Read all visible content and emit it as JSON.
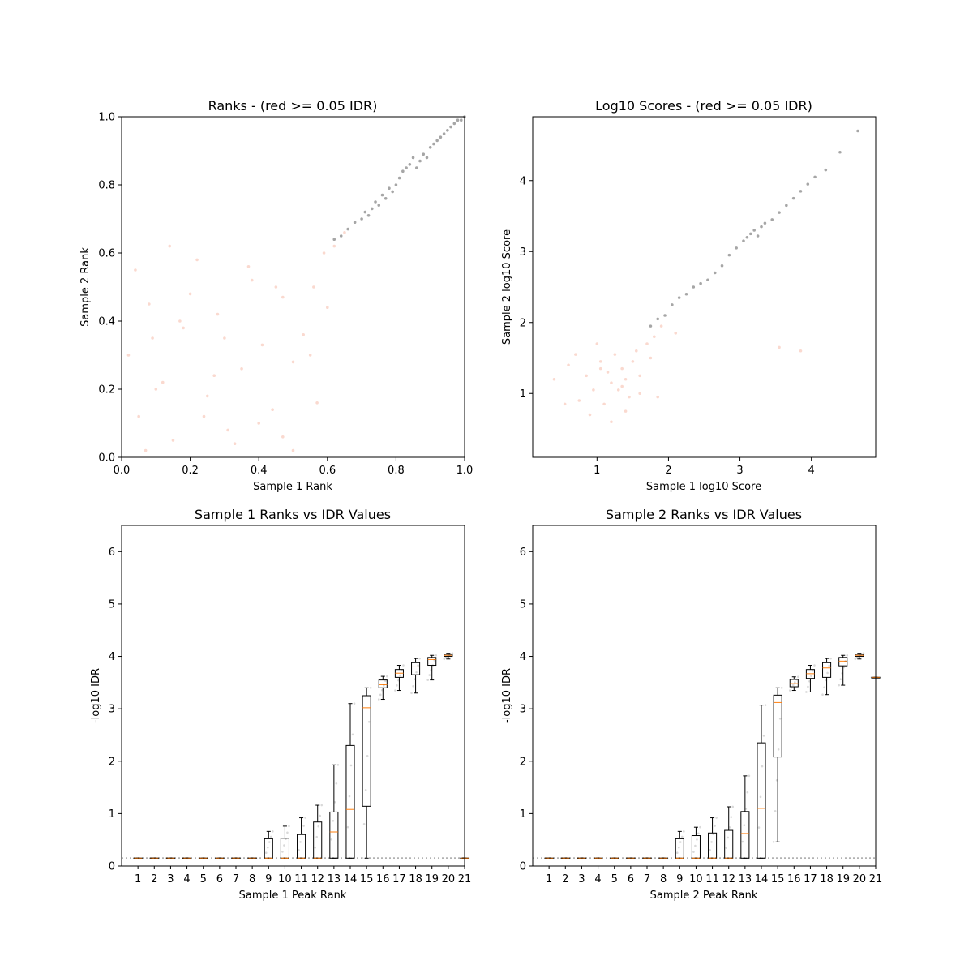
{
  "chart_data": [
    {
      "type": "scatter",
      "title": "Ranks - (red >= 0.05 IDR)",
      "xlabel": "Sample 1 Rank",
      "ylabel": "Sample 2 Rank",
      "xlim": [
        0,
        1
      ],
      "ylim": [
        0,
        1
      ],
      "xticks": [
        "0.0",
        "0.2",
        "0.4",
        "0.6",
        "0.8",
        "1.0"
      ],
      "yticks": [
        "0.0",
        "0.2",
        "0.4",
        "0.6",
        "0.8",
        "1.0"
      ],
      "colors": {
        "pass": "#000000",
        "fail": "#f08060"
      },
      "series": [
        {
          "color": "#000000",
          "description_points": "high-rank points along the diagonal",
          "x": [
            0.62,
            0.64,
            0.66,
            0.68,
            0.7,
            0.71,
            0.72,
            0.73,
            0.74,
            0.75,
            0.76,
            0.77,
            0.78,
            0.79,
            0.8,
            0.81,
            0.82,
            0.83,
            0.84,
            0.85,
            0.86,
            0.87,
            0.88,
            0.89,
            0.9,
            0.91,
            0.92,
            0.93,
            0.94,
            0.95,
            0.96,
            0.97,
            0.98,
            0.99,
            1.0
          ],
          "y": [
            0.64,
            0.65,
            0.67,
            0.69,
            0.7,
            0.72,
            0.71,
            0.73,
            0.75,
            0.74,
            0.77,
            0.76,
            0.79,
            0.78,
            0.8,
            0.82,
            0.84,
            0.85,
            0.86,
            0.88,
            0.85,
            0.87,
            0.89,
            0.88,
            0.91,
            0.92,
            0.93,
            0.94,
            0.95,
            0.96,
            0.97,
            0.98,
            0.99,
            0.99,
            1.0
          ]
        },
        {
          "color": "#f08060",
          "x": [
            0.02,
            0.05,
            0.08,
            0.12,
            0.15,
            0.18,
            0.22,
            0.25,
            0.28,
            0.31,
            0.35,
            0.38,
            0.41,
            0.44,
            0.47,
            0.5,
            0.53,
            0.56,
            0.59,
            0.62,
            0.65,
            0.04,
            0.1,
            0.2,
            0.3,
            0.4,
            0.5,
            0.6,
            0.07,
            0.17,
            0.27,
            0.37,
            0.47,
            0.57,
            0.14,
            0.33,
            0.45,
            0.55,
            0.24,
            0.09
          ],
          "y": [
            0.3,
            0.12,
            0.45,
            0.22,
            0.05,
            0.38,
            0.58,
            0.18,
            0.42,
            0.08,
            0.26,
            0.52,
            0.33,
            0.14,
            0.47,
            0.02,
            0.36,
            0.5,
            0.6,
            0.62,
            0.66,
            0.55,
            0.2,
            0.48,
            0.35,
            0.1,
            0.28,
            0.44,
            0.02,
            0.4,
            0.24,
            0.56,
            0.06,
            0.16,
            0.62,
            0.04,
            0.5,
            0.3,
            0.12,
            0.35
          ]
        }
      ]
    },
    {
      "type": "scatter",
      "title": "Log10 Scores - (red >= 0.05 IDR)",
      "xlabel": "Sample 1 log10 Score",
      "ylabel": "Sample 2 log10 Score",
      "xlim": [
        0.1,
        4.9
      ],
      "ylim": [
        0.1,
        4.9
      ],
      "xticks": [
        "1",
        "2",
        "3",
        "4"
      ],
      "yticks": [
        "1",
        "2",
        "3",
        "4"
      ],
      "series": [
        {
          "color": "#000000",
          "x": [
            1.75,
            1.85,
            1.95,
            2.05,
            2.15,
            2.25,
            2.35,
            2.45,
            2.55,
            2.65,
            2.75,
            2.85,
            2.95,
            3.05,
            3.1,
            3.15,
            3.2,
            3.25,
            3.3,
            3.35,
            3.45,
            3.55,
            3.65,
            3.75,
            3.85,
            3.95,
            4.05,
            4.2,
            4.4,
            4.65
          ],
          "y": [
            1.95,
            2.05,
            2.1,
            2.25,
            2.35,
            2.4,
            2.5,
            2.55,
            2.6,
            2.7,
            2.8,
            2.95,
            3.05,
            3.15,
            3.2,
            3.25,
            3.3,
            3.22,
            3.35,
            3.4,
            3.45,
            3.55,
            3.65,
            3.75,
            3.85,
            3.95,
            4.05,
            4.15,
            4.4,
            4.7
          ]
        },
        {
          "color": "#f08060",
          "x": [
            0.4,
            0.6,
            0.75,
            0.85,
            0.95,
            1.05,
            1.1,
            1.15,
            1.2,
            1.25,
            1.3,
            1.35,
            1.4,
            1.45,
            1.5,
            1.55,
            1.6,
            1.7,
            1.8,
            1.9,
            0.7,
            0.9,
            1.0,
            1.2,
            1.4,
            1.6,
            0.55,
            1.35,
            1.05,
            1.75,
            2.1,
            3.55,
            3.85,
            1.85
          ],
          "y": [
            1.2,
            1.4,
            0.9,
            1.25,
            1.05,
            1.45,
            0.85,
            1.3,
            1.15,
            1.55,
            1.05,
            1.35,
            1.2,
            0.95,
            1.45,
            1.6,
            1.25,
            1.7,
            1.8,
            1.95,
            1.55,
            0.7,
            1.7,
            0.6,
            0.75,
            1.0,
            0.85,
            1.1,
            1.35,
            1.5,
            1.85,
            1.65,
            1.6,
            0.95
          ]
        }
      ]
    },
    {
      "type": "box",
      "title": "Sample 1 Ranks vs IDR Values",
      "xlabel": "Sample 1 Peak Rank",
      "ylabel": "-log10 IDR",
      "ylim": [
        0,
        6.5
      ],
      "xlim": [
        0,
        21
      ],
      "yticks": [
        "0",
        "1",
        "2",
        "3",
        "4",
        "5",
        "6"
      ],
      "categories": [
        "1",
        "2",
        "3",
        "4",
        "5",
        "6",
        "7",
        "8",
        "9",
        "10",
        "11",
        "12",
        "13",
        "14",
        "15",
        "16",
        "17",
        "18",
        "19",
        "20",
        "21"
      ],
      "boxes": [
        {
          "q1": 0.15,
          "median": 0.15,
          "q3": 0.15,
          "whislo": 0.15,
          "whishi": 0.15
        },
        {
          "q1": 0.15,
          "median": 0.15,
          "q3": 0.15,
          "whislo": 0.15,
          "whishi": 0.15
        },
        {
          "q1": 0.15,
          "median": 0.15,
          "q3": 0.15,
          "whislo": 0.15,
          "whishi": 0.15
        },
        {
          "q1": 0.15,
          "median": 0.15,
          "q3": 0.15,
          "whislo": 0.15,
          "whishi": 0.15
        },
        {
          "q1": 0.15,
          "median": 0.15,
          "q3": 0.15,
          "whislo": 0.15,
          "whishi": 0.15
        },
        {
          "q1": 0.15,
          "median": 0.15,
          "q3": 0.15,
          "whislo": 0.15,
          "whishi": 0.15
        },
        {
          "q1": 0.15,
          "median": 0.15,
          "q3": 0.15,
          "whislo": 0.15,
          "whishi": 0.15
        },
        {
          "q1": 0.15,
          "median": 0.15,
          "q3": 0.15,
          "whislo": 0.15,
          "whishi": 0.15
        },
        {
          "q1": 0.15,
          "median": 0.15,
          "q3": 0.52,
          "whislo": 0.15,
          "whishi": 0.66
        },
        {
          "q1": 0.15,
          "median": 0.15,
          "q3": 0.53,
          "whislo": 0.15,
          "whishi": 0.76
        },
        {
          "q1": 0.15,
          "median": 0.15,
          "q3": 0.6,
          "whislo": 0.15,
          "whishi": 0.92
        },
        {
          "q1": 0.15,
          "median": 0.15,
          "q3": 0.84,
          "whislo": 0.15,
          "whishi": 1.16
        },
        {
          "q1": 0.15,
          "median": 0.65,
          "q3": 1.03,
          "whislo": 0.15,
          "whishi": 1.93
        },
        {
          "q1": 0.15,
          "median": 1.08,
          "q3": 2.3,
          "whislo": 0.15,
          "whishi": 3.1
        },
        {
          "q1": 1.14,
          "median": 3.02,
          "q3": 3.25,
          "whislo": 0.15,
          "whishi": 3.4
        },
        {
          "q1": 3.4,
          "median": 3.46,
          "q3": 3.55,
          "whislo": 3.18,
          "whishi": 3.62
        },
        {
          "q1": 3.6,
          "median": 3.68,
          "q3": 3.75,
          "whislo": 3.35,
          "whishi": 3.83
        },
        {
          "q1": 3.65,
          "median": 3.8,
          "q3": 3.88,
          "whislo": 3.3,
          "whishi": 3.96
        },
        {
          "q1": 3.83,
          "median": 3.94,
          "q3": 3.98,
          "whislo": 3.55,
          "whishi": 4.02
        },
        {
          "q1": 4.0,
          "median": 4.02,
          "q3": 4.04,
          "whislo": 3.95,
          "whishi": 4.06
        },
        {
          "q1": 0.15,
          "median": 0.15,
          "q3": 0.15,
          "whislo": 0.15,
          "whishi": 0.15
        }
      ]
    },
    {
      "type": "box",
      "title": "Sample 2 Ranks vs IDR Values",
      "xlabel": "Sample 2 Peak Rank",
      "ylabel": "-log10 IDR",
      "ylim": [
        0,
        6.5
      ],
      "xlim": [
        0,
        21
      ],
      "yticks": [
        "0",
        "1",
        "2",
        "3",
        "4",
        "5",
        "6"
      ],
      "categories": [
        "1",
        "2",
        "3",
        "4",
        "5",
        "6",
        "7",
        "8",
        "9",
        "10",
        "11",
        "12",
        "13",
        "14",
        "15",
        "16",
        "17",
        "18",
        "19",
        "20",
        "21"
      ],
      "boxes": [
        {
          "q1": 0.15,
          "median": 0.15,
          "q3": 0.15,
          "whislo": 0.15,
          "whishi": 0.15
        },
        {
          "q1": 0.15,
          "median": 0.15,
          "q3": 0.15,
          "whislo": 0.15,
          "whishi": 0.15
        },
        {
          "q1": 0.15,
          "median": 0.15,
          "q3": 0.15,
          "whislo": 0.15,
          "whishi": 0.15
        },
        {
          "q1": 0.15,
          "median": 0.15,
          "q3": 0.15,
          "whislo": 0.15,
          "whishi": 0.15
        },
        {
          "q1": 0.15,
          "median": 0.15,
          "q3": 0.15,
          "whislo": 0.15,
          "whishi": 0.15
        },
        {
          "q1": 0.15,
          "median": 0.15,
          "q3": 0.15,
          "whislo": 0.15,
          "whishi": 0.15
        },
        {
          "q1": 0.15,
          "median": 0.15,
          "q3": 0.15,
          "whislo": 0.15,
          "whishi": 0.15
        },
        {
          "q1": 0.15,
          "median": 0.15,
          "q3": 0.15,
          "whislo": 0.15,
          "whishi": 0.15
        },
        {
          "q1": 0.15,
          "median": 0.15,
          "q3": 0.52,
          "whislo": 0.15,
          "whishi": 0.66
        },
        {
          "q1": 0.15,
          "median": 0.15,
          "q3": 0.58,
          "whislo": 0.15,
          "whishi": 0.74
        },
        {
          "q1": 0.15,
          "median": 0.15,
          "q3": 0.63,
          "whislo": 0.15,
          "whishi": 0.92
        },
        {
          "q1": 0.15,
          "median": 0.15,
          "q3": 0.68,
          "whislo": 0.15,
          "whishi": 1.13
        },
        {
          "q1": 0.15,
          "median": 0.62,
          "q3": 1.04,
          "whislo": 0.15,
          "whishi": 1.72
        },
        {
          "q1": 0.15,
          "median": 1.1,
          "q3": 2.35,
          "whislo": 0.15,
          "whishi": 3.07
        },
        {
          "q1": 2.08,
          "median": 3.12,
          "q3": 3.26,
          "whislo": 0.46,
          "whishi": 3.4
        },
        {
          "q1": 3.42,
          "median": 3.48,
          "q3": 3.56,
          "whislo": 3.35,
          "whishi": 3.61
        },
        {
          "q1": 3.58,
          "median": 3.67,
          "q3": 3.75,
          "whislo": 3.32,
          "whishi": 3.83
        },
        {
          "q1": 3.6,
          "median": 3.78,
          "q3": 3.88,
          "whislo": 3.27,
          "whishi": 3.96
        },
        {
          "q1": 3.82,
          "median": 3.91,
          "q3": 3.98,
          "whislo": 3.45,
          "whishi": 4.02
        },
        {
          "q1": 4.0,
          "median": 4.02,
          "q3": 4.04,
          "whislo": 3.95,
          "whishi": 4.06
        },
        {
          "q1": 3.6,
          "median": 3.6,
          "q3": 3.6,
          "whislo": 3.6,
          "whishi": 3.6
        }
      ]
    }
  ]
}
